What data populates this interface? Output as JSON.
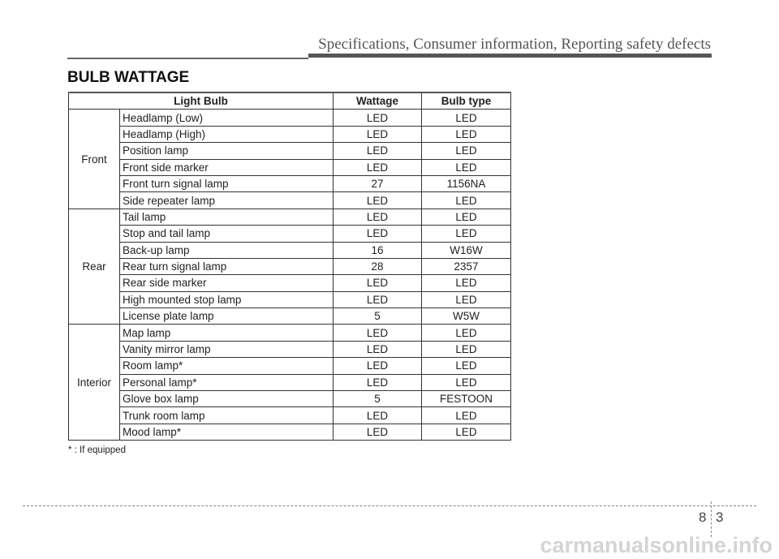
{
  "header": {
    "title": "Specifications, Consumer information, Reporting safety defects"
  },
  "section": {
    "title": "BULB WATTAGE"
  },
  "table": {
    "columns": [
      "Light Bulb",
      "Wattage",
      "Bulb type"
    ],
    "groups": [
      {
        "name": "Front",
        "rows": [
          [
            "Headlamp (Low)",
            "LED",
            "LED"
          ],
          [
            "Headlamp (High)",
            "LED",
            "LED"
          ],
          [
            "Position lamp",
            "LED",
            "LED"
          ],
          [
            "Front side marker",
            "LED",
            "LED"
          ],
          [
            "Front turn signal lamp",
            "27",
            "1156NA"
          ],
          [
            "Side repeater lamp",
            "LED",
            "LED"
          ]
        ]
      },
      {
        "name": "Rear",
        "rows": [
          [
            "Tail lamp",
            "LED",
            "LED"
          ],
          [
            "Stop and tail lamp",
            "LED",
            "LED"
          ],
          [
            "Back-up lamp",
            "16",
            "W16W"
          ],
          [
            "Rear turn signal lamp",
            "28",
            "2357"
          ],
          [
            "Rear side marker",
            "LED",
            "LED"
          ],
          [
            "High mounted stop lamp",
            "LED",
            "LED"
          ],
          [
            "License plate lamp",
            "5",
            "W5W"
          ]
        ]
      },
      {
        "name": "Interior",
        "rows": [
          [
            "Map lamp",
            "LED",
            "LED"
          ],
          [
            "Vanity mirror lamp",
            "LED",
            "LED"
          ],
          [
            "Room lamp*",
            "LED",
            "LED"
          ],
          [
            "Personal lamp*",
            "LED",
            "LED"
          ],
          [
            "Glove box lamp",
            "5",
            "FESTOON"
          ],
          [
            "Trunk room lamp",
            "LED",
            "LED"
          ],
          [
            "Mood lamp*",
            "LED",
            "LED"
          ]
        ]
      }
    ]
  },
  "footnote": "* : If equipped",
  "page": {
    "chapter": "8",
    "number": "3"
  },
  "watermark": "carmanualsonline.info"
}
